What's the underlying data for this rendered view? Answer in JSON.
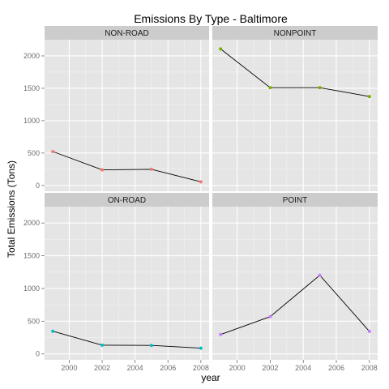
{
  "chart_data": {
    "type": "line",
    "title": "Emissions By Type - Baltimore",
    "xlabel": "year",
    "ylabel": "Total Emissions (Tons)",
    "x": [
      1999,
      2002,
      2005,
      2008
    ],
    "xticks": [
      2000,
      2002,
      2004,
      2006,
      2008
    ],
    "xtick_labels": [
      "2000",
      "2002",
      "2004",
      "2006",
      "2008"
    ],
    "xlim": [
      1998.5,
      2008.5
    ],
    "yticks": [
      0,
      500,
      1000,
      1500,
      2000
    ],
    "ytick_labels": [
      "0",
      "500",
      "1000",
      "1500",
      "2000"
    ],
    "ylim": [
      -90,
      2250
    ],
    "line_color": "#000000",
    "panel_bg": "#e5e5e5",
    "strip_bg": "#cccccc",
    "facets": [
      {
        "name": "NON-ROAD",
        "color": "#f8766d",
        "values": [
          522.9,
          240.8,
          248.9,
          55.8
        ]
      },
      {
        "name": "NONPOINT",
        "color": "#7cae00",
        "values": [
          2107.6,
          1509.5,
          1509.5,
          1373.2
        ]
      },
      {
        "name": "ON-ROAD",
        "color": "#00bfc4",
        "values": [
          346.8,
          134.3,
          130.4,
          88.3
        ]
      },
      {
        "name": "POINT",
        "color": "#c77cff",
        "values": [
          296.8,
          569.3,
          1202.5,
          344.98
        ]
      }
    ]
  }
}
